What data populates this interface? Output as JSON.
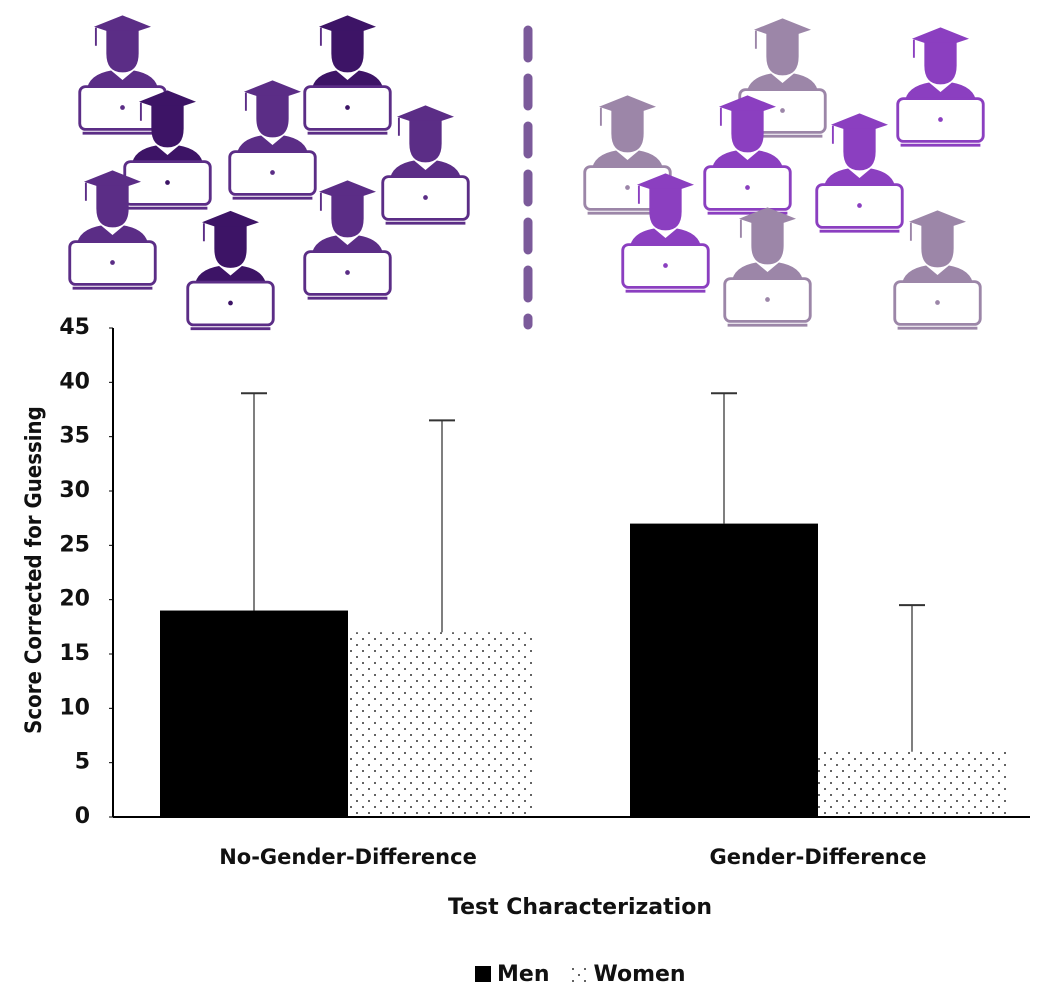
{
  "chart_data": {
    "type": "bar",
    "categories": [
      "No-Gender-Difference",
      "Gender-Difference"
    ],
    "series": [
      {
        "name": "Men",
        "color": "#000000",
        "values": [
          19,
          27
        ],
        "errors": [
          20,
          12
        ]
      },
      {
        "name": "Women",
        "color": "#ffffff",
        "values": [
          17,
          6
        ],
        "errors": [
          19.5,
          13.5
        ]
      }
    ],
    "y_label": "Score Corrected for Guessing",
    "x_label": "Test Characterization",
    "ylim": [
      0,
      45
    ],
    "yticks": [
      0,
      5,
      10,
      15,
      20,
      25,
      30,
      35,
      40,
      45
    ],
    "legend": "bottom"
  }
}
